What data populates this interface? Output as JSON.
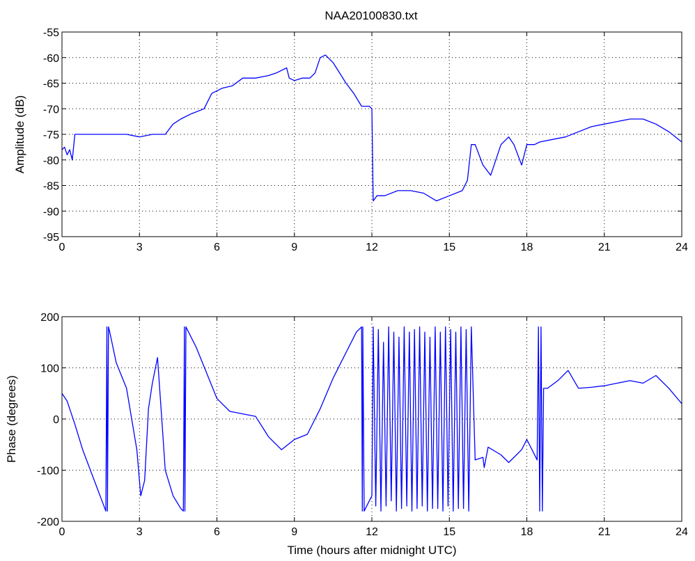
{
  "figure": {
    "title": "NAA20100830.txt",
    "line_color": "#0000ff"
  },
  "chart_data": [
    {
      "type": "line",
      "title": "NAA20100830.txt",
      "xlabel": "",
      "ylabel": "Amplitude (dB)",
      "xlim": [
        0,
        24
      ],
      "ylim": [
        -95,
        -55
      ],
      "xticks": [
        0,
        3,
        6,
        9,
        12,
        15,
        18,
        21,
        24
      ],
      "yticks": [
        -55,
        -60,
        -65,
        -70,
        -75,
        -80,
        -85,
        -90,
        -95
      ],
      "grid": true,
      "series": [
        {
          "color": "#0000ff",
          "x": [
            0,
            0.1,
            0.2,
            0.3,
            0.4,
            0.5,
            0.7,
            1,
            1.5,
            2,
            2.5,
            3,
            3.5,
            4,
            4.3,
            4.6,
            5,
            5.5,
            5.8,
            6.2,
            6.6,
            7,
            7.5,
            8,
            8.3,
            8.7,
            8.8,
            9,
            9.3,
            9.6,
            9.8,
            10,
            10.2,
            10.5,
            11,
            11.3,
            11.6,
            11.9,
            12,
            12.05,
            12.2,
            12.5,
            13,
            13.5,
            14,
            14.5,
            15,
            15.5,
            15.7,
            15.85,
            16,
            16.3,
            16.6,
            17,
            17.3,
            17.5,
            17.8,
            18,
            18.3,
            18.5,
            19,
            19.5,
            20,
            20.5,
            21,
            21.5,
            22,
            22.5,
            23,
            23.5,
            24
          ],
          "y": [
            -78,
            -77.5,
            -79,
            -78,
            -80,
            -75,
            -75,
            -75,
            -75,
            -75,
            -75,
            -75.5,
            -75,
            -75,
            -73,
            -72,
            -71,
            -70,
            -67,
            -66,
            -65.5,
            -64,
            -64,
            -63.5,
            -63,
            -62,
            -64,
            -64.5,
            -64,
            -64,
            -63,
            -60,
            -59.5,
            -61,
            -65,
            -67,
            -69.5,
            -69.5,
            -70,
            -88,
            -87,
            -87,
            -86,
            -86,
            -86.5,
            -88,
            -87,
            -86,
            -84,
            -77,
            -77,
            -81,
            -83,
            -77,
            -75.5,
            -77,
            -81,
            -77,
            -77,
            -76.5,
            -76,
            -75.5,
            -74.5,
            -73.5,
            -73,
            -72.5,
            -72,
            -72,
            -73,
            -74.5,
            -76.5
          ]
        }
      ]
    },
    {
      "type": "line",
      "title": "",
      "xlabel": "Time (hours after midnight UTC)",
      "ylabel": "Phase (degrees)",
      "xlim": [
        0,
        24
      ],
      "ylim": [
        -200,
        200
      ],
      "xticks": [
        0,
        3,
        6,
        9,
        12,
        15,
        18,
        21,
        24
      ],
      "yticks": [
        200,
        100,
        0,
        -100,
        -200
      ],
      "grid": true,
      "series": [
        {
          "color": "#0000ff",
          "x": [
            0,
            0.2,
            0.5,
            0.8,
            1.1,
            1.4,
            1.7,
            1.74,
            1.76,
            1.8,
            1.85,
            2.1,
            2.5,
            2.9,
            3.05,
            3.2,
            3.35,
            3.5,
            3.7,
            3.85,
            4.0,
            4.3,
            4.6,
            4.7,
            4.74,
            4.76,
            4.8,
            5.2,
            5.6,
            6.0,
            6.5,
            7,
            7.5,
            8.0,
            8.5,
            9.0,
            9.5,
            10,
            10.5,
            11,
            11.4,
            11.6,
            11.63,
            11.65,
            11.7,
            12,
            12.05,
            12.15,
            12.25,
            12.35,
            12.45,
            12.55,
            12.65,
            12.75,
            12.85,
            12.95,
            13.05,
            13.15,
            13.25,
            13.35,
            13.45,
            13.55,
            13.65,
            13.75,
            13.85,
            13.95,
            14.05,
            14.15,
            14.25,
            14.35,
            14.45,
            14.55,
            14.65,
            14.75,
            14.85,
            14.95,
            15.05,
            15.15,
            15.25,
            15.35,
            15.45,
            15.55,
            15.65,
            15.75,
            15.85,
            16,
            16.3,
            16.35,
            16.5,
            17,
            17.3,
            17.5,
            17.8,
            18,
            18.2,
            18.4,
            18.45,
            18.5,
            18.55,
            18.6,
            18.65,
            18.8,
            19.2,
            19.6,
            20,
            20.5,
            21,
            21.5,
            22,
            22.5,
            23,
            23.5,
            24
          ],
          "y": [
            50,
            35,
            -10,
            -60,
            -100,
            -140,
            -180,
            180,
            -180,
            180,
            170,
            110,
            60,
            -60,
            -150,
            -120,
            20,
            70,
            120,
            10,
            -100,
            -150,
            -175,
            -180,
            180,
            -180,
            180,
            140,
            90,
            40,
            15,
            10,
            5,
            -35,
            -60,
            -40,
            -30,
            20,
            80,
            130,
            170,
            180,
            -180,
            180,
            -180,
            -150,
            180,
            -170,
            175,
            -180,
            150,
            -170,
            180,
            -160,
            170,
            -180,
            160,
            -175,
            180,
            -170,
            170,
            -180,
            175,
            -175,
            180,
            -170,
            170,
            -180,
            160,
            -175,
            180,
            -175,
            170,
            -180,
            180,
            -170,
            175,
            -180,
            170,
            -175,
            180,
            -175,
            175,
            -180,
            180,
            -80,
            -75,
            -95,
            -55,
            -70,
            -85,
            -75,
            -60,
            -40,
            -60,
            -80,
            180,
            -180,
            180,
            -180,
            60,
            60,
            75,
            95,
            60,
            62,
            65,
            70,
            75,
            70,
            85,
            60,
            30
          ]
        }
      ]
    }
  ]
}
